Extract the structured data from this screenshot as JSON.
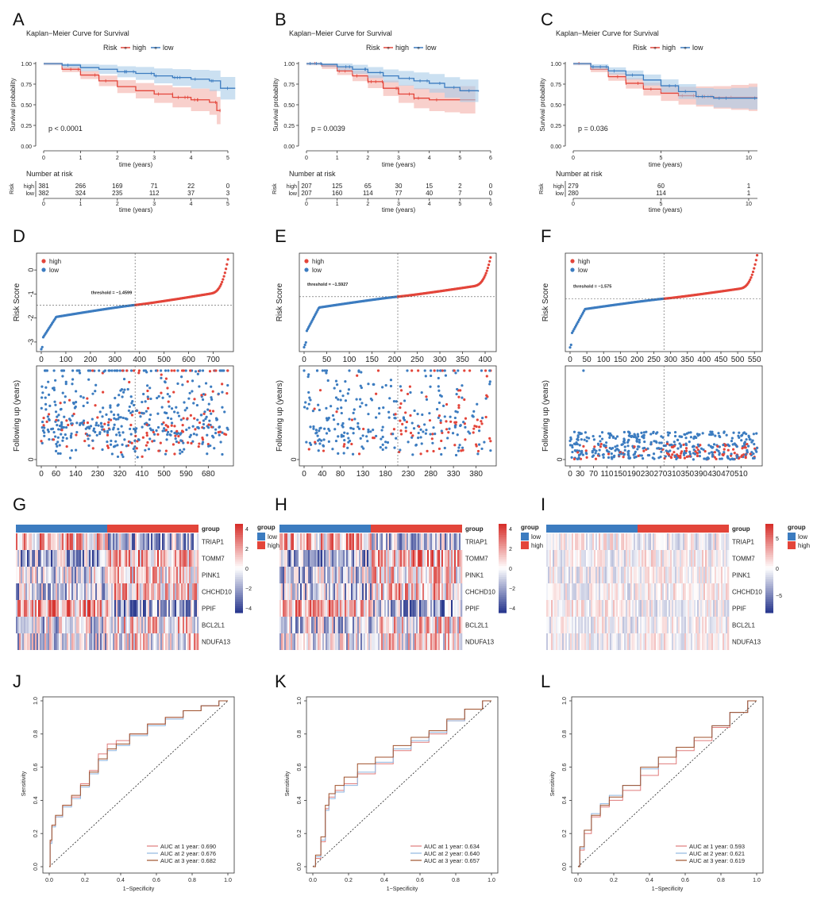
{
  "panel_labels": [
    "A",
    "B",
    "C",
    "D",
    "E",
    "F",
    "G",
    "H",
    "I",
    "J",
    "K",
    "L"
  ],
  "colors": {
    "high": "#e3453a",
    "low": "#3c7cc0",
    "high_band": "#f4b0aa",
    "low_band": "#a9cbe8",
    "heat_low": "#2b3a8f",
    "heat_mid": "#ffffff",
    "heat_high": "#d7302c",
    "auc1": "#e07b7b",
    "auc2": "#8fb6e0",
    "auc3": "#a0522d"
  },
  "chart_data": [
    {
      "type": "line",
      "panel": "A",
      "title": "Kaplan−Meier Curve for Survival",
      "legend_title": "Risk",
      "legend": [
        "high",
        "low"
      ],
      "xlabel": "time (years)",
      "ylabel": "Survival probability",
      "xlim": [
        0,
        5
      ],
      "ylim": [
        0,
        1
      ],
      "xticks": [
        0,
        1,
        2,
        3,
        4,
        5
      ],
      "yticks": [
        "0.00",
        "0.25",
        "0.50",
        "0.75",
        "1.00"
      ],
      "pvalue": "p < 0.0001",
      "series": [
        {
          "name": "high",
          "x": [
            0,
            0.5,
            1,
            1.5,
            2,
            2.5,
            3,
            3.5,
            4,
            4.5,
            4.7,
            4.8
          ],
          "y": [
            1,
            0.93,
            0.86,
            0.79,
            0.72,
            0.67,
            0.63,
            0.59,
            0.56,
            0.53,
            0.43,
            0.43
          ]
        },
        {
          "name": "low",
          "x": [
            0,
            0.5,
            1,
            1.5,
            2,
            2.5,
            3,
            3.5,
            4,
            4.5,
            4.8,
            5.2
          ],
          "y": [
            1,
            0.98,
            0.95,
            0.93,
            0.9,
            0.88,
            0.85,
            0.83,
            0.81,
            0.79,
            0.7,
            0.7
          ]
        }
      ],
      "risk_table": {
        "title": "Number at risk",
        "ylabel": "Risk",
        "xlabel": "time (years)",
        "times": [
          0,
          1,
          2,
          3,
          4,
          5
        ],
        "rows": [
          {
            "name": "high",
            "values": [
              "381",
              "266",
              "169",
              "71",
              "22",
              "0"
            ]
          },
          {
            "name": "low",
            "values": [
              "382",
              "324",
              "235",
              "112",
              "37",
              "3"
            ]
          }
        ]
      }
    },
    {
      "type": "line",
      "panel": "B",
      "title": "Kaplan−Meier Curve for Survival",
      "legend_title": "Risk",
      "legend": [
        "high",
        "low"
      ],
      "xlabel": "time (years)",
      "ylabel": "Survival probability",
      "xlim": [
        0,
        6
      ],
      "ylim": [
        0,
        1
      ],
      "xticks": [
        0,
        1,
        2,
        3,
        4,
        5,
        6
      ],
      "yticks": [
        "0.00",
        "0.25",
        "0.50",
        "0.75",
        "1.00"
      ],
      "pvalue": "p = 0.0039",
      "series": [
        {
          "name": "high",
          "x": [
            0,
            0.5,
            1,
            1.5,
            2,
            2.5,
            3,
            3.5,
            4,
            4.5,
            5,
            5.5
          ],
          "y": [
            1,
            0.97,
            0.91,
            0.85,
            0.78,
            0.7,
            0.63,
            0.58,
            0.56,
            0.56,
            0.56,
            0.56
          ]
        },
        {
          "name": "low",
          "x": [
            0,
            0.5,
            1,
            1.5,
            2,
            2.5,
            3,
            3.5,
            4,
            4.5,
            5,
            5.6
          ],
          "y": [
            1,
            0.99,
            0.96,
            0.93,
            0.89,
            0.85,
            0.82,
            0.79,
            0.76,
            0.71,
            0.67,
            0.66
          ]
        }
      ],
      "risk_table": {
        "title": "Number at risk",
        "ylabel": "Risk",
        "xlabel": "time (years)",
        "times": [
          0,
          1,
          2,
          3,
          4,
          5,
          6
        ],
        "rows": [
          {
            "name": "high",
            "values": [
              "207",
              "125",
              "65",
              "30",
              "15",
              "2",
              "0"
            ]
          },
          {
            "name": "low",
            "values": [
              "207",
              "160",
              "114",
              "77",
              "40",
              "7",
              "0"
            ]
          }
        ]
      }
    },
    {
      "type": "line",
      "panel": "C",
      "title": "Kaplan−Meier Curve for Survival",
      "legend_title": "Risk",
      "legend": [
        "high",
        "low"
      ],
      "xlabel": "time (years)",
      "ylabel": "Survival probability",
      "xlim": [
        0,
        10.5
      ],
      "ylim": [
        0,
        1
      ],
      "xticks": [
        0,
        5,
        10
      ],
      "yticks": [
        "0.00",
        "0.25",
        "0.50",
        "0.75",
        "1.00"
      ],
      "pvalue": "p = 0.036",
      "series": [
        {
          "name": "high",
          "x": [
            0,
            1,
            2,
            3,
            4,
            5,
            6,
            7,
            8,
            9,
            10,
            10.5
          ],
          "y": [
            1,
            0.93,
            0.84,
            0.76,
            0.69,
            0.64,
            0.61,
            0.6,
            0.59,
            0.59,
            0.59,
            0.59
          ]
        },
        {
          "name": "low",
          "x": [
            0,
            1,
            2,
            3,
            4,
            5,
            6,
            7,
            8,
            9,
            10,
            10.5
          ],
          "y": [
            1,
            0.96,
            0.91,
            0.86,
            0.8,
            0.73,
            0.66,
            0.6,
            0.58,
            0.58,
            0.58,
            0.58
          ]
        }
      ],
      "risk_table": {
        "title": "Number at risk",
        "ylabel": "Risk",
        "xlabel": "time (years)",
        "times": [
          0,
          5,
          10
        ],
        "rows": [
          {
            "name": "high",
            "values": [
              "279",
              "60",
              "1"
            ]
          },
          {
            "name": "low",
            "values": [
              "280",
              "114",
              "1"
            ]
          }
        ]
      }
    },
    {
      "type": "scatter",
      "panel": "D",
      "ylabel": "Risk Score",
      "legend": [
        "high",
        "low"
      ],
      "threshold": "threshold = −1.4599",
      "n": 763,
      "split": 382,
      "ylim": [
        -3.4,
        0.7
      ],
      "yticks": [
        -3,
        -2,
        -1,
        0
      ],
      "xticks": [
        0,
        100,
        200,
        300,
        400,
        500,
        600,
        700
      ],
      "score_min": -3.3,
      "score_max": 0.55,
      "score_threshold": -1.46
    },
    {
      "type": "scatter",
      "panel": "E",
      "ylabel": "Risk Score",
      "legend": [
        "high",
        "low"
      ],
      "threshold": "threshold = −1.5927",
      "n": 414,
      "split": 207,
      "ylim": [
        -4.1,
        0.4
      ],
      "yticks": [],
      "xticks": [
        0,
        50,
        100,
        150,
        200,
        250,
        300,
        350,
        400
      ],
      "score_min": -3.9,
      "score_max": 0.3,
      "score_threshold": -1.59
    },
    {
      "type": "scatter",
      "panel": "F",
      "ylabel": "Risk Score",
      "legend": [
        "high",
        "low"
      ],
      "threshold": "threshold = −1.575",
      "n": 559,
      "split": 280,
      "ylim": [
        -4.1,
        0.6
      ],
      "yticks": [],
      "xticks": [
        0,
        50,
        100,
        150,
        200,
        250,
        300,
        350,
        400,
        450,
        500,
        550
      ],
      "score_min": -3.9,
      "score_max": 0.5,
      "score_threshold": -1.575
    },
    {
      "type": "scatter",
      "panel": "D2",
      "ylabel": "Following up (years)",
      "yticks": [
        "0"
      ],
      "xticks": [
        0,
        60,
        140,
        230,
        320,
        410,
        500,
        590,
        680
      ],
      "n": 763,
      "split": 382
    },
    {
      "type": "scatter",
      "panel": "E2",
      "ylabel": "Following up (years)",
      "yticks": [
        "0"
      ],
      "xticks": [
        0,
        40,
        80,
        130,
        180,
        230,
        280,
        330,
        380
      ],
      "n": 414,
      "split": 207
    },
    {
      "type": "scatter",
      "panel": "F2",
      "ylabel": "Following up (years)",
      "yticks": [
        "0"
      ],
      "xticks": [
        0,
        30,
        70,
        110,
        150,
        190,
        230,
        270,
        310,
        350,
        390,
        430,
        470,
        510
      ],
      "n": 559,
      "split": 280
    },
    {
      "type": "heatmap",
      "panel": "G",
      "genes": [
        "TRIAP1",
        "TOMM7",
        "PINK1",
        "CHCHD10",
        "PPIF",
        "BCL2L1",
        "NDUFA13"
      ],
      "group_label": "group",
      "groups": [
        "low",
        "high"
      ],
      "scale_ticks": [
        "4",
        "2",
        "0",
        "−2",
        "−4"
      ]
    },
    {
      "type": "heatmap",
      "panel": "H",
      "genes": [
        "TRIAP1",
        "TOMM7",
        "PINK1",
        "CHCHD10",
        "PPIF",
        "BCL2L1",
        "NDUFA13"
      ],
      "group_label": "group",
      "groups": [
        "low",
        "high"
      ],
      "scale_ticks": [
        "4",
        "2",
        "0",
        "−2",
        "−4"
      ]
    },
    {
      "type": "heatmap",
      "panel": "I",
      "genes": [
        "TRIAP1",
        "TOMM7",
        "PINK1",
        "CHCHD10",
        "PPIF",
        "BCL2L1",
        "NDUFA13"
      ],
      "group_label": "group",
      "groups": [
        "low",
        "high"
      ],
      "scale_ticks": [
        "5",
        "0",
        "−5"
      ]
    },
    {
      "type": "line",
      "panel": "J",
      "xlabel": "1−Specificity",
      "ylabel": "Sensitivity",
      "xlim": [
        0,
        1
      ],
      "ylim": [
        0,
        1
      ],
      "xticks": [
        "0.0",
        "0.2",
        "0.4",
        "0.6",
        "0.8",
        "1.0"
      ],
      "yticks": [
        "0.0",
        "0.2",
        "0.4",
        "0.6",
        "0.8",
        "1.0"
      ],
      "legend": [
        "AUC at 1 year: 0.690",
        "AUC at 2 year: 0.676",
        "AUC at 3 year: 0.682"
      ],
      "series": [
        {
          "name": "1 year",
          "x": [
            0,
            0.01,
            0.02,
            0.05,
            0.1,
            0.15,
            0.2,
            0.25,
            0.3,
            0.35,
            0.4,
            0.5,
            0.6,
            0.7,
            0.8,
            0.9,
            1
          ],
          "y": [
            0,
            0.15,
            0.25,
            0.3,
            0.37,
            0.42,
            0.5,
            0.58,
            0.68,
            0.74,
            0.76,
            0.8,
            0.86,
            0.9,
            0.94,
            0.97,
            1
          ]
        },
        {
          "name": "2 year",
          "x": [
            0,
            0.01,
            0.02,
            0.05,
            0.1,
            0.15,
            0.2,
            0.25,
            0.3,
            0.35,
            0.4,
            0.5,
            0.6,
            0.7,
            0.8,
            0.9,
            1
          ],
          "y": [
            0,
            0.14,
            0.24,
            0.3,
            0.36,
            0.41,
            0.48,
            0.56,
            0.64,
            0.7,
            0.73,
            0.79,
            0.85,
            0.89,
            0.94,
            0.97,
            1
          ]
        },
        {
          "name": "3 year",
          "x": [
            0,
            0.01,
            0.02,
            0.05,
            0.1,
            0.15,
            0.2,
            0.25,
            0.3,
            0.35,
            0.4,
            0.5,
            0.6,
            0.7,
            0.8,
            0.9,
            1
          ],
          "y": [
            0,
            0.16,
            0.25,
            0.31,
            0.37,
            0.43,
            0.49,
            0.57,
            0.65,
            0.71,
            0.74,
            0.8,
            0.86,
            0.9,
            0.94,
            0.97,
            1
          ]
        }
      ]
    },
    {
      "type": "line",
      "panel": "K",
      "xlabel": "1−Specificity",
      "ylabel": "Sensitivity",
      "xlim": [
        0,
        1
      ],
      "ylim": [
        0,
        1
      ],
      "xticks": [
        "0.0",
        "0.2",
        "0.4",
        "0.6",
        "0.8",
        "1.0"
      ],
      "yticks": [
        "0.0",
        "0.2",
        "0.4",
        "0.6",
        "0.8",
        "1.0"
      ],
      "legend": [
        "AUC at 1 year: 0.634",
        "AUC at 2 year: 0.640",
        "AUC at 3 year: 0.657"
      ],
      "series": [
        {
          "name": "1 year",
          "x": [
            0,
            0.03,
            0.06,
            0.08,
            0.1,
            0.15,
            0.2,
            0.3,
            0.4,
            0.5,
            0.6,
            0.7,
            0.8,
            0.9,
            1
          ],
          "y": [
            0,
            0.05,
            0.15,
            0.35,
            0.42,
            0.46,
            0.5,
            0.56,
            0.62,
            0.7,
            0.75,
            0.8,
            0.88,
            0.95,
            1
          ]
        },
        {
          "name": "2 year",
          "x": [
            0,
            0.03,
            0.06,
            0.08,
            0.1,
            0.15,
            0.2,
            0.3,
            0.4,
            0.5,
            0.6,
            0.7,
            0.8,
            0.9,
            1
          ],
          "y": [
            0,
            0.06,
            0.16,
            0.34,
            0.41,
            0.45,
            0.49,
            0.57,
            0.63,
            0.71,
            0.76,
            0.81,
            0.88,
            0.95,
            1
          ]
        },
        {
          "name": "3 year",
          "x": [
            0,
            0.03,
            0.06,
            0.08,
            0.1,
            0.15,
            0.2,
            0.3,
            0.4,
            0.5,
            0.6,
            0.7,
            0.8,
            0.9,
            1
          ],
          "y": [
            0,
            0.07,
            0.18,
            0.37,
            0.44,
            0.49,
            0.54,
            0.62,
            0.66,
            0.73,
            0.78,
            0.82,
            0.89,
            0.95,
            1
          ]
        }
      ]
    },
    {
      "type": "line",
      "panel": "L",
      "xlabel": "1−Specificity",
      "ylabel": "Sensitivity",
      "xlim": [
        0,
        1
      ],
      "ylim": [
        0,
        1
      ],
      "xticks": [
        "0.0",
        "0.2",
        "0.4",
        "0.6",
        "0.8",
        "1.0"
      ],
      "yticks": [
        "0.0",
        "0.2",
        "0.4",
        "0.6",
        "0.8",
        "1.0"
      ],
      "legend": [
        "AUC at 1 year: 0.593",
        "AUC at 2 year: 0.621",
        "AUC at 3 year: 0.619"
      ],
      "series": [
        {
          "name": "1 year",
          "x": [
            0,
            0.02,
            0.05,
            0.1,
            0.15,
            0.2,
            0.3,
            0.4,
            0.5,
            0.6,
            0.7,
            0.8,
            0.9,
            1
          ],
          "y": [
            0,
            0.1,
            0.2,
            0.3,
            0.36,
            0.4,
            0.46,
            0.55,
            0.62,
            0.7,
            0.76,
            0.84,
            0.93,
            1
          ]
        },
        {
          "name": "2 year",
          "x": [
            0,
            0.02,
            0.05,
            0.1,
            0.15,
            0.2,
            0.3,
            0.4,
            0.5,
            0.6,
            0.7,
            0.8,
            0.9,
            1
          ],
          "y": [
            0,
            0.11,
            0.22,
            0.32,
            0.38,
            0.43,
            0.49,
            0.59,
            0.66,
            0.72,
            0.78,
            0.85,
            0.93,
            1
          ]
        },
        {
          "name": "3 year",
          "x": [
            0,
            0.02,
            0.05,
            0.1,
            0.15,
            0.2,
            0.3,
            0.4,
            0.5,
            0.6,
            0.7,
            0.8,
            0.9,
            1
          ],
          "y": [
            0,
            0.12,
            0.22,
            0.31,
            0.37,
            0.42,
            0.49,
            0.6,
            0.66,
            0.72,
            0.78,
            0.85,
            0.93,
            1
          ]
        }
      ]
    }
  ]
}
